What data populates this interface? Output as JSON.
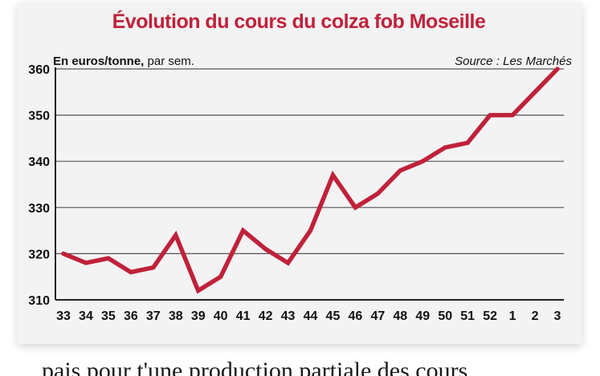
{
  "chart_data": {
    "type": "line",
    "title": "Évolution du cours du colza fob Moseille",
    "unit_label_bold": "En euros/tonne,",
    "unit_label_rest": " par sem.",
    "source": "Source : Les Marchés",
    "x": [
      "33",
      "34",
      "35",
      "36",
      "37",
      "38",
      "39",
      "40",
      "41",
      "42",
      "43",
      "44",
      "45",
      "46",
      "47",
      "48",
      "49",
      "50",
      "51",
      "52",
      "1",
      "2",
      "3"
    ],
    "series": [
      {
        "values": [
          320,
          318,
          319,
          316,
          317,
          324,
          312,
          315,
          325,
          321,
          318,
          325,
          337,
          330,
          333,
          338,
          340,
          343,
          344,
          350,
          350,
          355,
          360
        ]
      }
    ],
    "ylim": [
      310,
      360
    ],
    "yticks": [
      310,
      320,
      330,
      340,
      350,
      360
    ],
    "grid": true,
    "line_color": "#c0213a"
  },
  "page_text": {
    "partial_line": "pais pour t'une production partiale des cours"
  }
}
